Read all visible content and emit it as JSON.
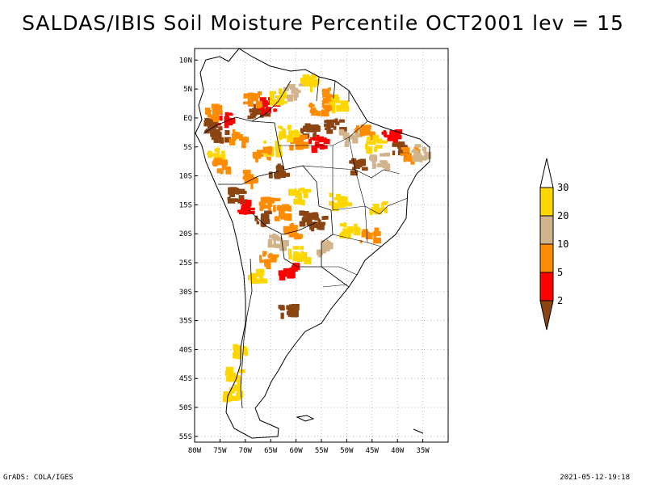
{
  "title": "SALDAS/IBIS Soil Moisture Percentile OCT2001 lev = 15",
  "footer": {
    "left": "GrADS: COLA/IGES",
    "right": "2021-05-12-19:18"
  },
  "map": {
    "region": "South America",
    "lon_range": [
      -80,
      -30
    ],
    "lat_range": [
      -56,
      12
    ],
    "lat_ticks": [
      {
        "value": 10,
        "label": "10N"
      },
      {
        "value": 5,
        "label": "5N"
      },
      {
        "value": 0,
        "label": "EQ"
      },
      {
        "value": -5,
        "label": "5S"
      },
      {
        "value": -10,
        "label": "10S"
      },
      {
        "value": -15,
        "label": "15S"
      },
      {
        "value": -20,
        "label": "20S"
      },
      {
        "value": -25,
        "label": "25S"
      },
      {
        "value": -30,
        "label": "30S"
      },
      {
        "value": -35,
        "label": "35S"
      },
      {
        "value": -40,
        "label": "40S"
      },
      {
        "value": -45,
        "label": "45S"
      },
      {
        "value": -50,
        "label": "50S"
      },
      {
        "value": -55,
        "label": "55S"
      }
    ],
    "lon_ticks": [
      {
        "value": -80,
        "label": "80W"
      },
      {
        "value": -75,
        "label": "75W"
      },
      {
        "value": -70,
        "label": "70W"
      },
      {
        "value": -65,
        "label": "65W"
      },
      {
        "value": -60,
        "label": "60W"
      },
      {
        "value": -55,
        "label": "55W"
      },
      {
        "value": -50,
        "label": "50W"
      },
      {
        "value": -45,
        "label": "45W"
      },
      {
        "value": -40,
        "label": "40W"
      },
      {
        "value": -35,
        "label": "35W"
      }
    ],
    "classes": {
      "dark": "#8b4513",
      "red": "#ff0000",
      "orange": "#ff8c00",
      "tan": "#d2b48c",
      "yellow": "#ffd700"
    },
    "patches": [
      {
        "lon": -77,
        "lat": -1,
        "class": "dark"
      },
      {
        "lon": -75.5,
        "lat": -2.5,
        "class": "dark"
      },
      {
        "lon": -74,
        "lat": 0,
        "class": "red"
      },
      {
        "lon": -76.5,
        "lat": 1.5,
        "class": "orange"
      },
      {
        "lon": -72,
        "lat": -3,
        "class": "orange"
      },
      {
        "lon": -76,
        "lat": -6,
        "class": "yellow"
      },
      {
        "lon": -75,
        "lat": -8,
        "class": "orange"
      },
      {
        "lon": -68,
        "lat": 1.5,
        "class": "dark"
      },
      {
        "lon": -66,
        "lat": 2.5,
        "class": "red"
      },
      {
        "lon": -69,
        "lat": 3.5,
        "class": "orange"
      },
      {
        "lon": -64,
        "lat": 4,
        "class": "yellow"
      },
      {
        "lon": -61,
        "lat": 5,
        "class": "tan"
      },
      {
        "lon": -58,
        "lat": 6.5,
        "class": "yellow"
      },
      {
        "lon": -54,
        "lat": 4.5,
        "class": "orange"
      },
      {
        "lon": -52,
        "lat": 3,
        "class": "yellow"
      },
      {
        "lon": -56,
        "lat": 2,
        "class": "orange"
      },
      {
        "lon": -58,
        "lat": -2,
        "class": "dark"
      },
      {
        "lon": -56,
        "lat": -4,
        "class": "red"
      },
      {
        "lon": -60,
        "lat": -4,
        "class": "orange"
      },
      {
        "lon": -62,
        "lat": -2,
        "class": "yellow"
      },
      {
        "lon": -53,
        "lat": -1,
        "class": "dark"
      },
      {
        "lon": -50,
        "lat": -3,
        "class": "tan"
      },
      {
        "lon": -47,
        "lat": -2,
        "class": "orange"
      },
      {
        "lon": -45,
        "lat": -4,
        "class": "yellow"
      },
      {
        "lon": -42,
        "lat": -3,
        "class": "red"
      },
      {
        "lon": -40,
        "lat": -5,
        "class": "dark"
      },
      {
        "lon": -38,
        "lat": -6,
        "class": "orange"
      },
      {
        "lon": -36,
        "lat": -5.5,
        "class": "tan"
      },
      {
        "lon": -44,
        "lat": -7,
        "class": "tan"
      },
      {
        "lon": -48,
        "lat": -8,
        "class": "dark"
      },
      {
        "lon": -65,
        "lat": -5,
        "class": "yellow"
      },
      {
        "lon": -67,
        "lat": -6,
        "class": "orange"
      },
      {
        "lon": -64,
        "lat": -9,
        "class": "dark"
      },
      {
        "lon": -70,
        "lat": -10,
        "class": "orange"
      },
      {
        "lon": -72,
        "lat": -13,
        "class": "dark"
      },
      {
        "lon": -70,
        "lat": -15,
        "class": "red"
      },
      {
        "lon": -66,
        "lat": -14,
        "class": "orange"
      },
      {
        "lon": -67,
        "lat": -17,
        "class": "dark"
      },
      {
        "lon": -63,
        "lat": -16,
        "class": "orange"
      },
      {
        "lon": -60,
        "lat": -13,
        "class": "yellow"
      },
      {
        "lon": -58,
        "lat": -17,
        "class": "dark"
      },
      {
        "lon": -56,
        "lat": -17.5,
        "class": "dark"
      },
      {
        "lon": -61,
        "lat": -19,
        "class": "orange"
      },
      {
        "lon": -64,
        "lat": -21,
        "class": "tan"
      },
      {
        "lon": -66,
        "lat": -24,
        "class": "orange"
      },
      {
        "lon": -68,
        "lat": -27,
        "class": "yellow"
      },
      {
        "lon": -62,
        "lat": -26,
        "class": "red"
      },
      {
        "lon": -60,
        "lat": -23,
        "class": "yellow"
      },
      {
        "lon": -55,
        "lat": -22,
        "class": "tan"
      },
      {
        "lon": -50,
        "lat": -19,
        "class": "yellow"
      },
      {
        "lon": -46,
        "lat": -20,
        "class": "orange"
      },
      {
        "lon": -52,
        "lat": -14,
        "class": "yellow"
      },
      {
        "lon": -44,
        "lat": -15,
        "class": "yellow"
      },
      {
        "lon": -62,
        "lat": -33,
        "class": "dark"
      },
      {
        "lon": -71,
        "lat": -40,
        "class": "yellow"
      },
      {
        "lon": -72.5,
        "lat": -44,
        "class": "yellow"
      },
      {
        "lon": -73,
        "lat": -47,
        "class": "yellow"
      }
    ],
    "colorbar": {
      "labels": [
        "2",
        "5",
        "10",
        "20",
        "30"
      ],
      "colors": [
        "#8b4513",
        "#ff0000",
        "#ff8c00",
        "#d2b48c",
        "#ffd700",
        "#ffffff"
      ]
    }
  }
}
